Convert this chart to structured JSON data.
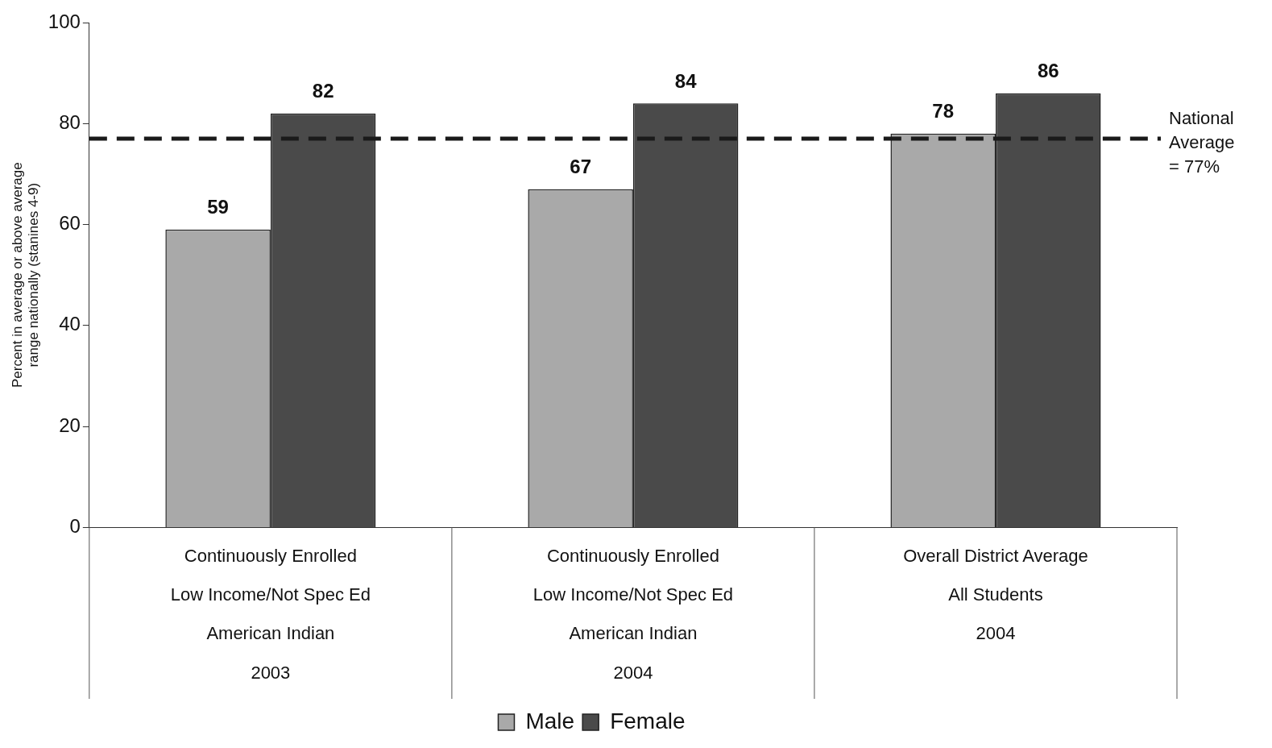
{
  "chart_data": {
    "type": "bar",
    "ylabel": "Percent in average or above average\nrange nationally (stanines 4-9)",
    "categories": [
      "Continuously Enrolled\nLow Income/Not Spec Ed\nAmerican Indian\n2003",
      "Continuously Enrolled\nLow Income/Not Spec Ed\nAmerican Indian\n2004",
      "Overall District Average\nAll Students\n2004"
    ],
    "series": [
      {
        "name": "Male",
        "color": "#a9a9a9",
        "values": [
          59,
          67,
          78
        ]
      },
      {
        "name": "Female",
        "color": "#4a4a4a",
        "values": [
          82,
          84,
          86
        ]
      }
    ],
    "ylim": [
      0,
      100
    ],
    "yticks": [
      0,
      20,
      40,
      60,
      80,
      100
    ],
    "data_labels": true,
    "grid": false,
    "legend": "bottom",
    "ref_lines": [
      {
        "axis": "y",
        "value": 77,
        "label": "National\nAverage\n= 77%",
        "line_style": "dashed",
        "color": "#1a1a1a"
      }
    ]
  }
}
